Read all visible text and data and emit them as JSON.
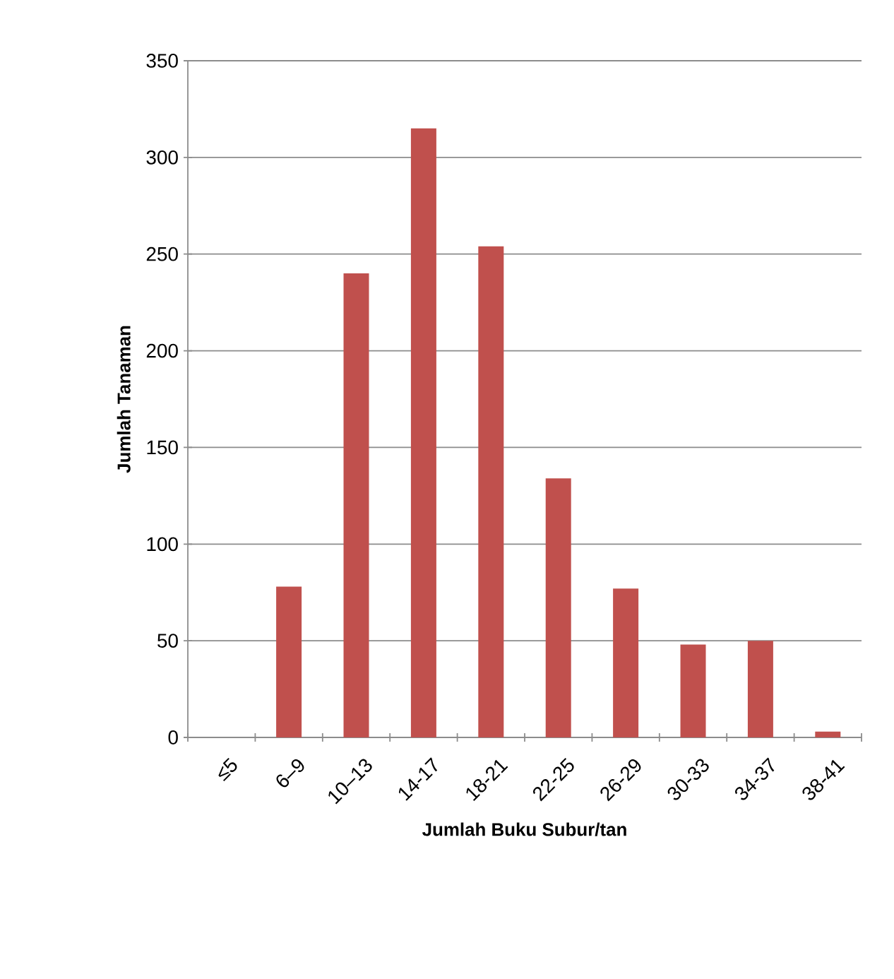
{
  "chart_data": {
    "type": "bar",
    "xlabel": "Jumlah Buku  Subur/tan",
    "ylabel": "Jumlah Tanaman",
    "categories": [
      "≤5",
      "6–9",
      "10–13",
      "14-17",
      "18-21",
      "22-25",
      "26-29",
      "30-33",
      "34-37",
      "38-41"
    ],
    "values": [
      0,
      78,
      240,
      315,
      254,
      134,
      77,
      48,
      50,
      3
    ],
    "color": "#c0504d",
    "ylim": [
      0,
      350
    ],
    "yticks": [
      0,
      50,
      100,
      150,
      200,
      250,
      300,
      350
    ],
    "grid": "y"
  }
}
